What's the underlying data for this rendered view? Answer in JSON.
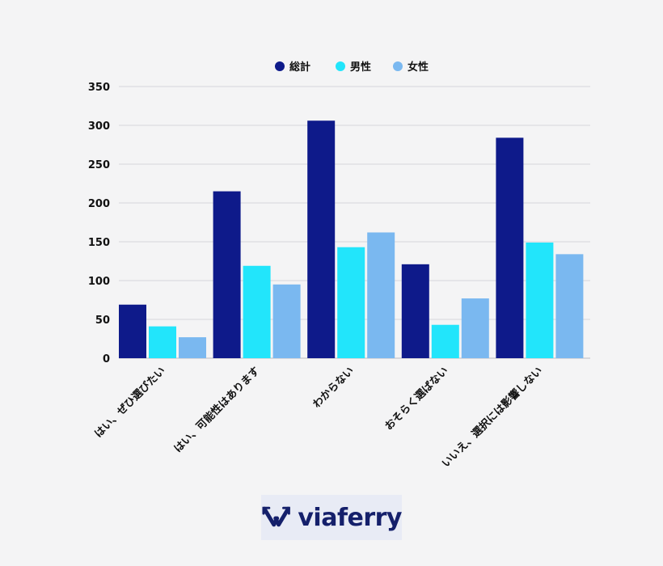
{
  "chart_data": {
    "type": "bar",
    "categories": [
      "はい、ぜひ選びたい",
      "はい、可能性はあります",
      "わからない",
      "おそらく選ばない",
      "いいえ、選択には影響しない"
    ],
    "series": [
      {
        "name": "総計",
        "color": "#0e1a8a",
        "values": [
          69,
          215,
          306,
          121,
          284
        ]
      },
      {
        "name": "男性",
        "color": "#22e5fb",
        "values": [
          41,
          119,
          143,
          43,
          149
        ]
      },
      {
        "name": "女性",
        "color": "#7ab8f0",
        "values": [
          27,
          95,
          162,
          77,
          134
        ]
      }
    ],
    "yticks": [
      0,
      50,
      100,
      150,
      200,
      250,
      300,
      350
    ],
    "ylim": [
      0,
      350
    ],
    "grid": true,
    "legend_position": "top-center",
    "title": "",
    "xlabel": "",
    "ylabel": ""
  },
  "logo": {
    "brand": "viaferry",
    "icon": "viaferry-arrows-icon",
    "color": "#15206b",
    "accent": "#22e5fb"
  }
}
